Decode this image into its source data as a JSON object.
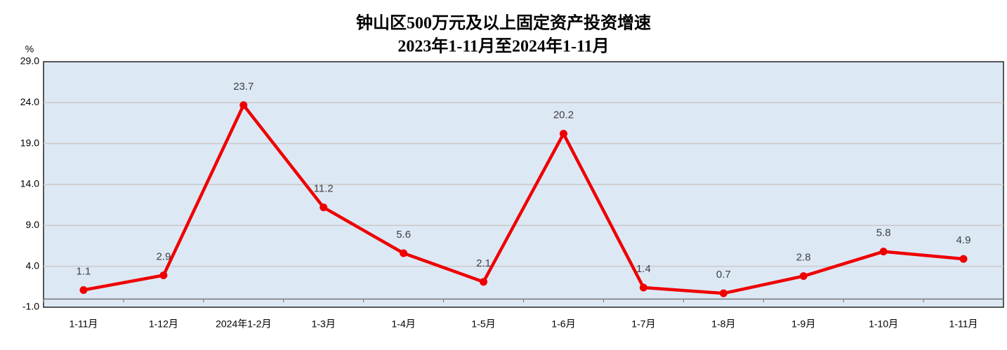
{
  "chart_data": {
    "type": "line",
    "title": "钟山区500万元及以上固定资产投资增速",
    "subtitle": "2023年1-11月至2024年1-11月",
    "ylabel": "%",
    "categories": [
      "1-11月",
      "1-12月",
      "2024年1-2月",
      "1-3月",
      "1-4月",
      "1-5月",
      "1-6月",
      "1-7月",
      "1-8月",
      "1-9月",
      "1-10月",
      "1-11月"
    ],
    "values": [
      1.1,
      2.9,
      23.7,
      11.2,
      5.6,
      2.1,
      20.2,
      1.4,
      0.7,
      2.8,
      5.8,
      4.9
    ],
    "color": "#ee0000",
    "ylim": [
      -1,
      29
    ],
    "yticks": [
      {
        "value": -1,
        "label": "-1.0"
      },
      {
        "value": 4,
        "label": "4.0"
      },
      {
        "value": 9,
        "label": "9.0"
      },
      {
        "value": 14,
        "label": "14.0"
      },
      {
        "value": 19,
        "label": "19.0"
      },
      {
        "value": 24,
        "label": "24.0"
      },
      {
        "value": 29,
        "label": "29.0"
      }
    ],
    "grid": true
  }
}
